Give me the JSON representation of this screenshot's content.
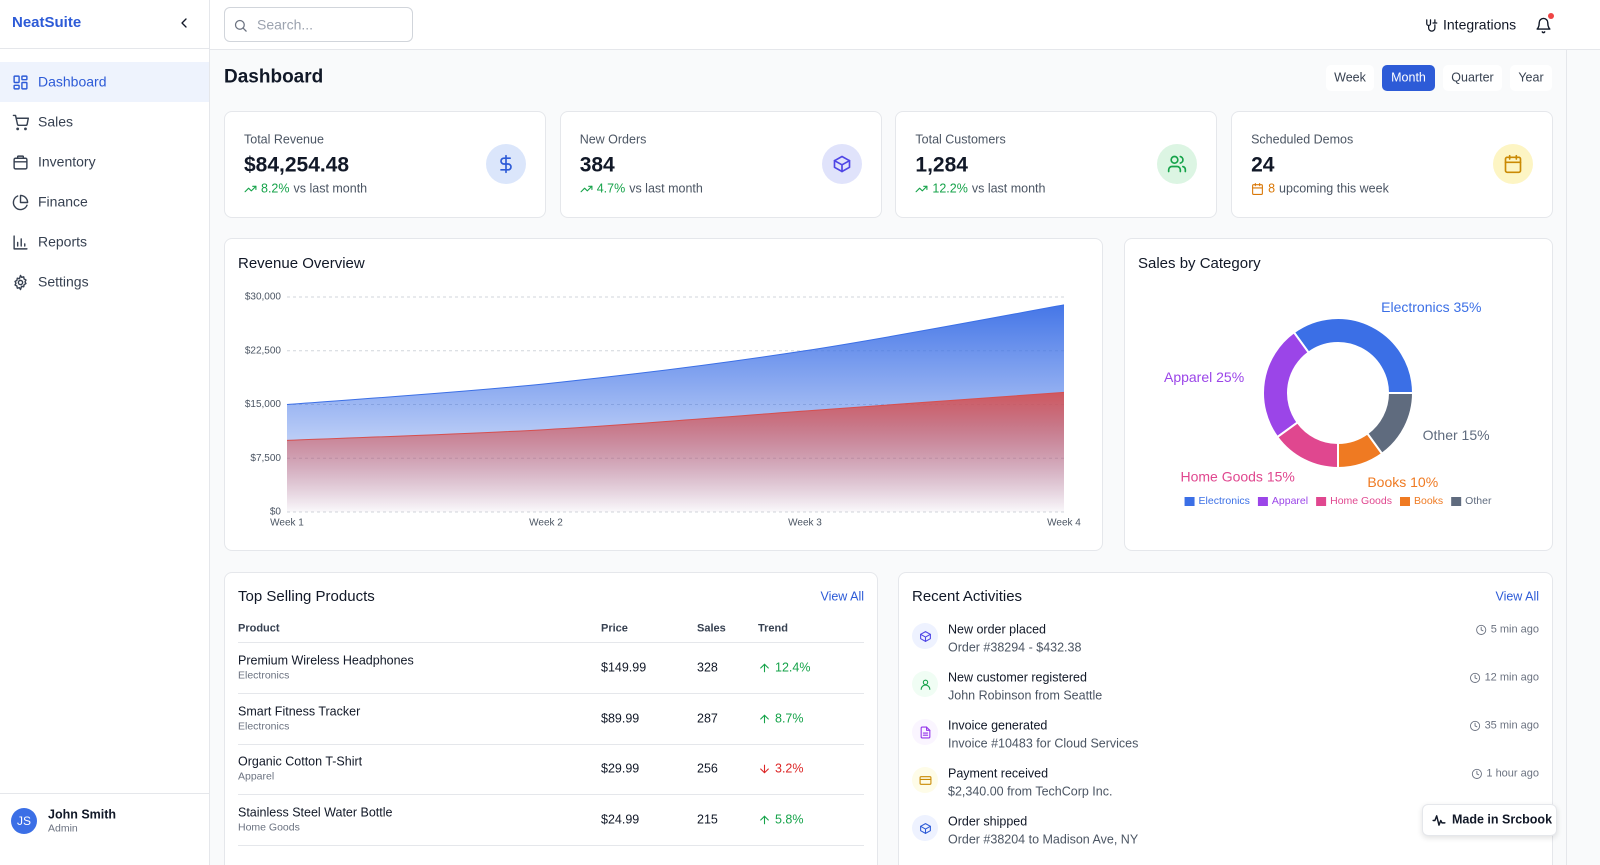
{
  "sidebar": {
    "brand": "NeatSuite",
    "nav": [
      {
        "label": "Dashboard",
        "active": true
      },
      {
        "label": "Sales"
      },
      {
        "label": "Inventory"
      },
      {
        "label": "Finance"
      },
      {
        "label": "Reports"
      },
      {
        "label": "Settings"
      }
    ],
    "user": {
      "initials": "JS",
      "name": "John Smith",
      "role": "Admin"
    }
  },
  "topbar": {
    "search_placeholder": "Search...",
    "integrations": "Integrations"
  },
  "header": {
    "title": "Dashboard",
    "periods": [
      {
        "label": "Week"
      },
      {
        "label": "Month",
        "active": true
      },
      {
        "label": "Quarter"
      },
      {
        "label": "Year"
      }
    ]
  },
  "stats": [
    {
      "label": "Total Revenue",
      "value": "$84,254.48",
      "change": "8.2%",
      "note": "vs last month"
    },
    {
      "label": "New Orders",
      "value": "384",
      "change": "4.7%",
      "note": "vs last month"
    },
    {
      "label": "Total Customers",
      "value": "1,284",
      "change": "12.2%",
      "note": "vs last month"
    },
    {
      "label": "Scheduled Demos",
      "value": "24",
      "change": "8",
      "note": "upcoming this week"
    }
  ],
  "chart_data": [
    {
      "type": "area",
      "title": "Revenue Overview",
      "categories": [
        "Week 1",
        "Week 2",
        "Week 3",
        "Week 4"
      ],
      "series": [
        {
          "color": "#3b6fe6",
          "values": [
            15000,
            17900,
            22500,
            28900
          ]
        },
        {
          "color": "#d64f4f",
          "values": [
            10000,
            11500,
            14100,
            16700
          ]
        }
      ],
      "ylim": [
        0,
        30000
      ],
      "yticks": [
        {
          "value": 0,
          "label": "$0"
        },
        {
          "value": 7500,
          "label": "$7,500"
        },
        {
          "value": 15000,
          "label": "$15,000"
        },
        {
          "value": 22500,
          "label": "$22,500"
        },
        {
          "value": 30000,
          "label": "$30,000"
        }
      ],
      "grid": true
    },
    {
      "type": "pie",
      "title": "Sales by Category",
      "categories": [
        "Electronics",
        "Apparel",
        "Home Goods",
        "Books",
        "Other"
      ],
      "values": [
        35,
        25,
        15,
        10,
        15
      ],
      "value_labels": [
        "Electronics 35%",
        "Apparel 25%",
        "Home Goods 15%",
        "Books 10%",
        "Other 15%"
      ],
      "colors": [
        "#3b6fe6",
        "#9b45e8",
        "#e0478f",
        "#ef7a22",
        "#5f6b7e"
      ],
      "donut": true,
      "legend": "bottom"
    }
  ],
  "products": {
    "title": "Top Selling Products",
    "view_all": "View All",
    "columns": [
      "Product",
      "Price",
      "Sales",
      "Trend"
    ],
    "rows": [
      {
        "name": "Premium Wireless Headphones",
        "category": "Electronics",
        "price": "$149.99",
        "sales": "328",
        "trend": "12.4%",
        "direction": "up"
      },
      {
        "name": "Smart Fitness Tracker",
        "category": "Electronics",
        "price": "$89.99",
        "sales": "287",
        "trend": "8.7%",
        "direction": "up"
      },
      {
        "name": "Organic Cotton T-Shirt",
        "category": "Apparel",
        "price": "$29.99",
        "sales": "256",
        "trend": "3.2%",
        "direction": "down"
      },
      {
        "name": "Stainless Steel Water Bottle",
        "category": "Home Goods",
        "price": "$24.99",
        "sales": "215",
        "trend": "5.8%",
        "direction": "up"
      }
    ]
  },
  "activities": {
    "title": "Recent Activities",
    "view_all": "View All",
    "items": [
      {
        "title": "New order placed",
        "detail": "Order #38294 - $432.38",
        "time": "5 min ago"
      },
      {
        "title": "New customer registered",
        "detail": "John Robinson from Seattle",
        "time": "12 min ago"
      },
      {
        "title": "Invoice generated",
        "detail": "Invoice #10483 for Cloud Services",
        "time": "35 min ago"
      },
      {
        "title": "Payment received",
        "detail": "$2,340.00 from TechCorp Inc.",
        "time": "1 hour ago"
      },
      {
        "title": "Order shipped",
        "detail": "Order #38204 to Madison Ave, NY"
      }
    ]
  },
  "badge": "Made in Srcbook"
}
